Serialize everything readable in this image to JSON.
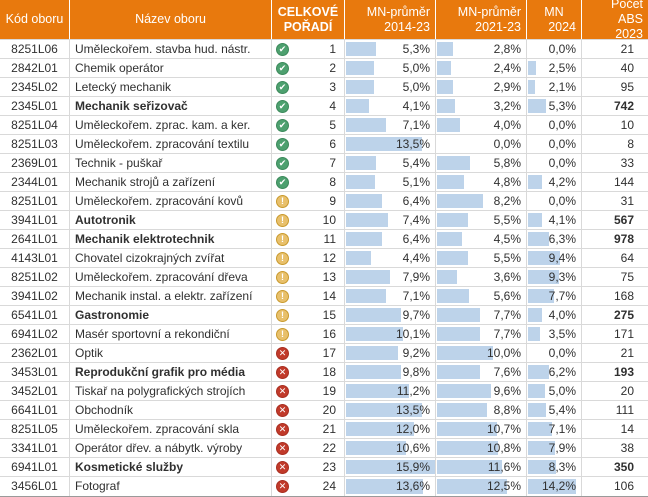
{
  "header": {
    "columns": [
      {
        "label": "Kód oboru"
      },
      {
        "label": "Název oboru"
      },
      {
        "line1": "CELKOVÉ",
        "line2": "POŘADÍ"
      },
      {
        "line1": "MN-průměr",
        "line2": "2014-23"
      },
      {
        "line1": "MN-průměr",
        "line2": "2021-23"
      },
      {
        "line1": "MN",
        "line2": "2024"
      },
      {
        "line1": "Počet ABS",
        "line2": "2023"
      }
    ]
  },
  "status_icons": {
    "good": {
      "glyph": "✔",
      "name": "check-circle-icon",
      "color": "#4DA06F"
    },
    "warn": {
      "glyph": "!",
      "name": "warning-circle-icon",
      "color": "#E8C06B"
    },
    "bad": {
      "glyph": "✕",
      "name": "x-circle-icon",
      "color": "#C13A2A"
    }
  },
  "colors": {
    "header_bg": "#E8790D",
    "data_bar": "#BDD3EA",
    "grid_line": "#D9D9D9",
    "text": "#303030"
  },
  "table": {
    "bar_scale_max": 16,
    "rows": [
      {
        "code": "8251L06",
        "name": "Uměleckořem. stavba hud. nástr.",
        "bold": false,
        "status": "good",
        "rank": "1",
        "mn14": "5,3%",
        "mn21": "2,8%",
        "mn24": "0,0%",
        "abs": "21"
      },
      {
        "code": "2842L01",
        "name": "Chemik operátor",
        "bold": false,
        "status": "good",
        "rank": "2",
        "mn14": "5,0%",
        "mn21": "2,4%",
        "mn24": "2,5%",
        "abs": "40"
      },
      {
        "code": "2345L02",
        "name": "Letecký mechanik",
        "bold": false,
        "status": "good",
        "rank": "3",
        "mn14": "5,0%",
        "mn21": "2,9%",
        "mn24": "2,1%",
        "abs": "95"
      },
      {
        "code": "2345L01",
        "name": "Mechanik seřizovač",
        "bold": true,
        "status": "good",
        "rank": "4",
        "mn14": "4,1%",
        "mn21": "3,2%",
        "mn24": "5,3%",
        "abs": "742"
      },
      {
        "code": "8251L04",
        "name": "Uměleckořem. zprac. kam. a ker.",
        "bold": false,
        "status": "good",
        "rank": "5",
        "mn14": "7,1%",
        "mn21": "4,0%",
        "mn24": "0,0%",
        "abs": "10"
      },
      {
        "code": "8251L03",
        "name": "Uměleckořem. zpracování textilu",
        "bold": false,
        "status": "good",
        "rank": "6",
        "mn14": "13,5%",
        "mn21": "0,0%",
        "mn24": "0,0%",
        "abs": "8"
      },
      {
        "code": "2369L01",
        "name": "Technik - puškař",
        "bold": false,
        "status": "good",
        "rank": "7",
        "mn14": "5,4%",
        "mn21": "5,8%",
        "mn24": "0,0%",
        "abs": "33"
      },
      {
        "code": "2344L01",
        "name": "Mechanik strojů a zařízení",
        "bold": false,
        "status": "good",
        "rank": "8",
        "mn14": "5,1%",
        "mn21": "4,8%",
        "mn24": "4,2%",
        "abs": "144"
      },
      {
        "code": "8251L01",
        "name": "Uměleckořem. zpracování kovů",
        "bold": false,
        "status": "warn",
        "rank": "9",
        "mn14": "6,4%",
        "mn21": "8,2%",
        "mn24": "0,0%",
        "abs": "31"
      },
      {
        "code": "3941L01",
        "name": "Autotronik",
        "bold": true,
        "status": "warn",
        "rank": "10",
        "mn14": "7,4%",
        "mn21": "5,5%",
        "mn24": "4,1%",
        "abs": "567"
      },
      {
        "code": "2641L01",
        "name": "Mechanik elektrotechnik",
        "bold": true,
        "status": "warn",
        "rank": "11",
        "mn14": "6,4%",
        "mn21": "4,5%",
        "mn24": "6,3%",
        "abs": "978"
      },
      {
        "code": "4143L01",
        "name": "Chovatel cizokrajných zvířat",
        "bold": false,
        "status": "warn",
        "rank": "12",
        "mn14": "4,4%",
        "mn21": "5,5%",
        "mn24": "9,4%",
        "abs": "64"
      },
      {
        "code": "8251L02",
        "name": "Uměleckořem. zpracování dřeva",
        "bold": false,
        "status": "warn",
        "rank": "13",
        "mn14": "7,9%",
        "mn21": "3,6%",
        "mn24": "9,3%",
        "abs": "75"
      },
      {
        "code": "3941L02",
        "name": "Mechanik instal. a elektr. zařízení",
        "bold": false,
        "status": "warn",
        "rank": "14",
        "mn14": "7,1%",
        "mn21": "5,6%",
        "mn24": "7,7%",
        "abs": "168"
      },
      {
        "code": "6541L01",
        "name": "Gastronomie",
        "bold": true,
        "status": "warn",
        "rank": "15",
        "mn14": "9,7%",
        "mn21": "7,7%",
        "mn24": "4,0%",
        "abs": "275"
      },
      {
        "code": "6941L02",
        "name": "Masér sportovní a rekondiční",
        "bold": false,
        "status": "warn",
        "rank": "16",
        "mn14": "10,1%",
        "mn21": "7,7%",
        "mn24": "3,5%",
        "abs": "171"
      },
      {
        "code": "2362L01",
        "name": "Optik",
        "bold": false,
        "status": "bad",
        "rank": "17",
        "mn14": "9,2%",
        "mn21": "10,0%",
        "mn24": "0,0%",
        "abs": "21"
      },
      {
        "code": "3453L01",
        "name": "Reprodukční grafik pro média",
        "bold": true,
        "status": "bad",
        "rank": "18",
        "mn14": "9,8%",
        "mn21": "7,6%",
        "mn24": "6,2%",
        "abs": "193"
      },
      {
        "code": "3452L01",
        "name": "Tiskař na polygrafických strojích",
        "bold": false,
        "status": "bad",
        "rank": "19",
        "mn14": "11,2%",
        "mn21": "9,6%",
        "mn24": "5,0%",
        "abs": "20"
      },
      {
        "code": "6641L01",
        "name": "Obchodník",
        "bold": false,
        "status": "bad",
        "rank": "20",
        "mn14": "13,5%",
        "mn21": "8,8%",
        "mn24": "5,4%",
        "abs": "111"
      },
      {
        "code": "8251L05",
        "name": "Uměleckořem. zpracování skla",
        "bold": false,
        "status": "bad",
        "rank": "21",
        "mn14": "12,0%",
        "mn21": "10,7%",
        "mn24": "7,1%",
        "abs": "14"
      },
      {
        "code": "3341L01",
        "name": "Operátor dřev. a nábytk. výroby",
        "bold": false,
        "status": "bad",
        "rank": "22",
        "mn14": "10,6%",
        "mn21": "10,8%",
        "mn24": "7,9%",
        "abs": "38"
      },
      {
        "code": "6941L01",
        "name": "Kosmetické služby",
        "bold": true,
        "status": "bad",
        "rank": "23",
        "mn14": "15,9%",
        "mn21": "11,6%",
        "mn24": "8,3%",
        "abs": "350"
      },
      {
        "code": "3456L01",
        "name": "Fotograf",
        "bold": false,
        "status": "bad",
        "rank": "24",
        "mn14": "13,6%",
        "mn21": "12,5%",
        "mn24": "14,2%",
        "abs": "106"
      }
    ]
  }
}
